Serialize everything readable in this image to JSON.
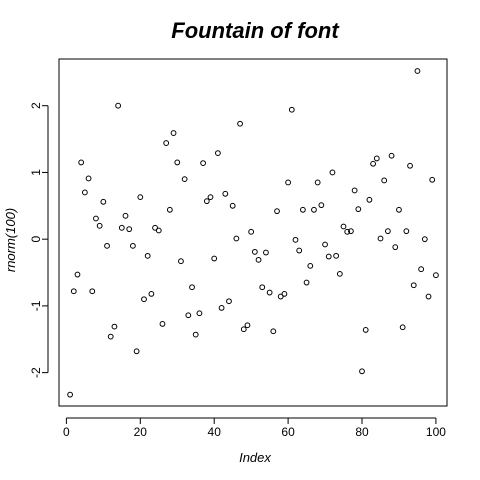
{
  "chart_data": {
    "type": "scatter",
    "title": "Fountain of font",
    "xlabel": "Index",
    "ylabel": "rnorm(100)",
    "xlim": [
      -2,
      103
    ],
    "ylim": [
      -2.5,
      2.7
    ],
    "xticks": [
      0,
      20,
      40,
      60,
      80,
      100
    ],
    "yticks": [
      -2,
      -1,
      0,
      1,
      2
    ],
    "grid": false,
    "x": [
      1,
      2,
      3,
      4,
      5,
      6,
      7,
      8,
      9,
      10,
      11,
      12,
      13,
      14,
      15,
      16,
      17,
      18,
      19,
      20,
      21,
      22,
      23,
      24,
      25,
      26,
      27,
      28,
      29,
      30,
      31,
      32,
      33,
      34,
      35,
      36,
      37,
      38,
      39,
      40,
      41,
      42,
      43,
      44,
      45,
      46,
      47,
      48,
      49,
      50,
      51,
      52,
      53,
      54,
      55,
      56,
      57,
      58,
      59,
      60,
      61,
      62,
      63,
      64,
      65,
      66,
      67,
      68,
      69,
      70,
      71,
      72,
      73,
      74,
      75,
      76,
      77,
      78,
      79,
      80,
      81,
      82,
      83,
      84,
      85,
      86,
      87,
      88,
      89,
      90,
      91,
      92,
      93,
      94,
      95,
      96,
      97,
      98,
      99,
      100
    ],
    "y": [
      -2.33,
      -0.78,
      -0.53,
      1.15,
      0.7,
      0.91,
      -0.78,
      0.31,
      0.2,
      0.56,
      -0.1,
      -1.46,
      -1.31,
      2.0,
      0.17,
      0.35,
      0.15,
      -0.1,
      -1.68,
      0.63,
      -0.9,
      -0.25,
      -0.82,
      0.17,
      0.13,
      -1.27,
      1.44,
      0.44,
      1.59,
      1.15,
      -0.33,
      0.9,
      -1.14,
      -0.72,
      -1.43,
      -1.11,
      1.14,
      0.57,
      0.63,
      -0.29,
      1.29,
      -1.03,
      0.68,
      -0.93,
      0.5,
      0.01,
      1.73,
      -1.35,
      -1.29,
      0.11,
      -0.19,
      -0.31,
      -0.72,
      -0.2,
      -0.8,
      -1.38,
      0.42,
      -0.86,
      -0.82,
      0.85,
      1.94,
      -0.01,
      -0.17,
      0.44,
      -0.65,
      -0.4,
      0.44,
      0.85,
      0.51,
      -0.08,
      -0.26,
      1.0,
      -0.25,
      -0.52,
      0.19,
      0.11,
      0.12,
      0.73,
      0.45,
      -1.98,
      -1.36,
      0.59,
      1.13,
      1.21,
      0.01,
      0.88,
      0.12,
      1.25,
      -0.12,
      0.44,
      -1.32,
      0.12,
      1.1,
      -0.69,
      2.52,
      -0.45,
      0.0,
      -0.86,
      0.89,
      -0.54
    ]
  }
}
